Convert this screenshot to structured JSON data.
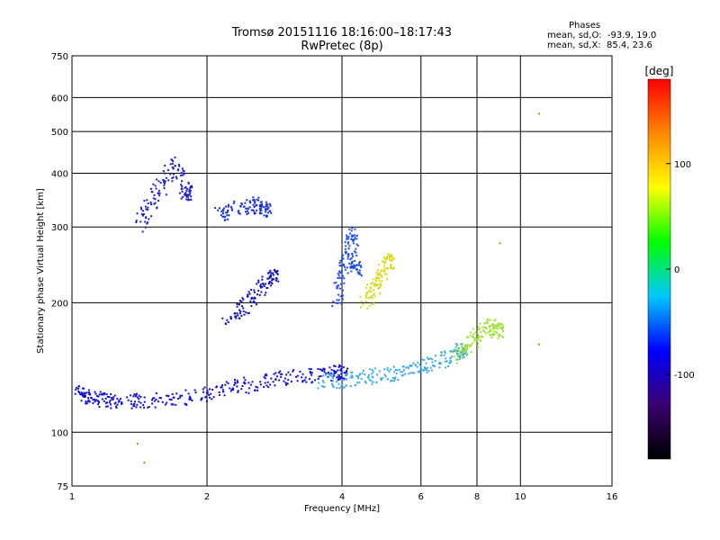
{
  "title": {
    "line1": "Tromsø 20151116 18:16:00–18:17:43",
    "line2": "RwPretec (8p)"
  },
  "phases": {
    "heading": "Phases",
    "line_o": "mean, sd,O:  -93.9, 19.0",
    "line_x": "mean, sd,X:  85.4, 23.6"
  },
  "chart_data": {
    "type": "scatter",
    "xlabel": "Frequency [MHz]",
    "ylabel": "Stationary phase Virtual Height [km]",
    "x_scale": "log",
    "y_scale": "log",
    "xlim": [
      1,
      16
    ],
    "ylim": [
      75,
      750
    ],
    "x_ticks": [
      1,
      2,
      4,
      6,
      8,
      10,
      16
    ],
    "y_ticks": [
      75,
      100,
      200,
      300,
      400,
      500,
      600,
      750
    ],
    "grid": true,
    "colorbar": {
      "label": "[deg]",
      "range": [
        -180,
        180
      ],
      "ticks": [
        100,
        0,
        -100
      ],
      "colors": [
        "#000000",
        "#3a0070",
        "#0000ff",
        "#00c8ff",
        "#00ff00",
        "#ffff00",
        "#ff8800",
        "#ff0000"
      ]
    },
    "series": [
      {
        "trace": "F lower O-trace",
        "color": "#1010d0",
        "x": [
          1.03,
          1.08,
          1.15,
          1.25,
          1.4,
          1.6,
          1.85,
          2.1,
          2.4,
          2.8,
          3.2,
          3.6,
          4.0
        ],
        "y": [
          125,
          121,
          119,
          118,
          118,
          119,
          121,
          124,
          128,
          133,
          135,
          136,
          138
        ]
      },
      {
        "trace": "F lower X-trace",
        "color": "#40a8e8",
        "x": [
          3.6,
          4.0,
          4.5,
          5.0,
          5.6,
          6.2,
          6.8,
          7.4
        ],
        "y": [
          131,
          132,
          134,
          136,
          139,
          143,
          148,
          155
        ]
      },
      {
        "trace": "F upper X-trace",
        "color": "#a0e040",
        "x": [
          7.2,
          7.6,
          8.0,
          8.5,
          8.9
        ],
        "y": [
          150,
          158,
          168,
          178,
          172
        ]
      },
      {
        "trace": "layer cluster 1.4-1.8 MHz",
        "color": "#2020c0",
        "x": [
          1.4,
          1.5,
          1.6,
          1.7,
          1.8
        ],
        "y": [
          300,
          340,
          380,
          420,
          360
        ]
      },
      {
        "trace": "layer cluster 2.1-2.8 MHz",
        "color": "#1830d0",
        "x": [
          2.1,
          2.3,
          2.5,
          2.7
        ],
        "y": [
          320,
          330,
          340,
          330
        ]
      },
      {
        "trace": "layer cluster 2.2-2.8 MHz lower",
        "color": "#1010b0",
        "x": [
          2.2,
          2.4,
          2.6,
          2.8
        ],
        "y": [
          180,
          195,
          210,
          230
        ]
      },
      {
        "trace": "layer cluster 3.9-4.3 MHz",
        "color": "#2050e0",
        "x": [
          3.9,
          4.0,
          4.1,
          4.2,
          4.3
        ],
        "y": [
          200,
          230,
          260,
          290,
          240
        ]
      },
      {
        "trace": "X cluster 4.5-5.2 MHz",
        "color": "#d8d820",
        "x": [
          4.5,
          4.7,
          4.9,
          5.1
        ],
        "y": [
          200,
          215,
          230,
          250
        ]
      },
      {
        "trace": "isolated",
        "color": "#d08000",
        "x": [
          1.4,
          1.45,
          11.0,
          11.0,
          9.0
        ],
        "y": [
          94,
          85,
          550,
          160,
          275
        ]
      }
    ]
  }
}
